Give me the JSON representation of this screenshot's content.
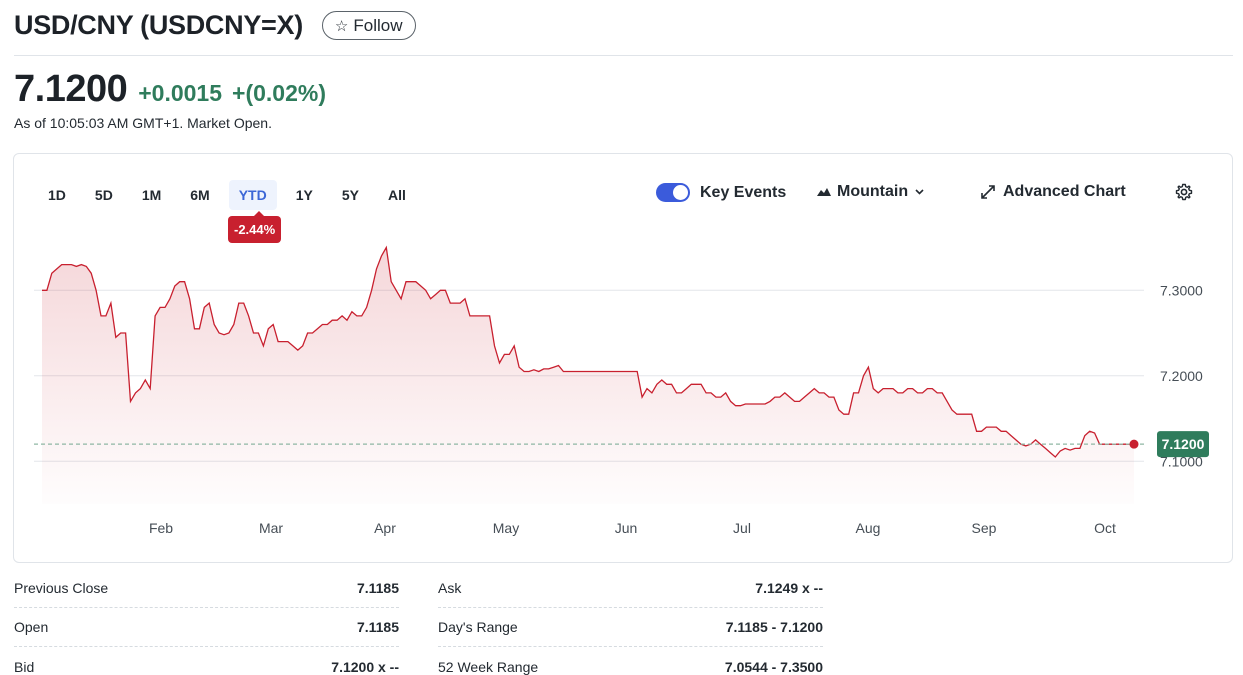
{
  "header": {
    "title": "USD/CNY (USDCNY=X)",
    "follow_label": "Follow"
  },
  "quote": {
    "price": "7.1200",
    "change": "+0.0015",
    "change_pct": "+(0.02%)",
    "as_of": "As of 10:05:03 AM GMT+1. Market Open."
  },
  "ranges": [
    "1D",
    "5D",
    "1M",
    "6M",
    "YTD",
    "1Y",
    "5Y",
    "All"
  ],
  "active_range": "YTD",
  "range_badge": "-2.44%",
  "toolbar": {
    "key_events_label": "Key Events",
    "key_events_on": true,
    "chart_type_label": "Mountain",
    "advanced_label": "Advanced Chart"
  },
  "colors": {
    "line": "#c8202f",
    "positive": "#2f7c5c",
    "accent": "#3b5bdb",
    "badge_price": "#2f7c5c",
    "badge_range": "#c8202f"
  },
  "chart_data": {
    "type": "area",
    "x_tick_labels": [
      "Feb",
      "Mar",
      "Apr",
      "May",
      "Jun",
      "Jul",
      "Aug",
      "Sep",
      "Oct"
    ],
    "y_tick_labels": [
      "7.3000",
      "7.2000",
      "7.1000"
    ],
    "ylim": [
      7.05,
      7.36
    ],
    "current_value": 7.12,
    "current_label": "7.1200",
    "previous_close": 7.1185,
    "grid": true,
    "series": [
      {
        "values": [
          7.3,
          7.3,
          7.32,
          7.325,
          7.33,
          7.33,
          7.33,
          7.328,
          7.33,
          7.328,
          7.32,
          7.3,
          7.27,
          7.27,
          7.285,
          7.245,
          7.25,
          7.25,
          7.17,
          7.18,
          7.185,
          7.195,
          7.185,
          7.27,
          7.28,
          7.28,
          7.29,
          7.305,
          7.31,
          7.31,
          7.29,
          7.255,
          7.255,
          7.28,
          7.285,
          7.26,
          7.25,
          7.248,
          7.25,
          7.26,
          7.285,
          7.285,
          7.27,
          7.25,
          7.25,
          7.235,
          7.255,
          7.26,
          7.24,
          7.24,
          7.24,
          7.235,
          7.23,
          7.235,
          7.25,
          7.25,
          7.255,
          7.26,
          7.26,
          7.265,
          7.265,
          7.27,
          7.265,
          7.275,
          7.27,
          7.27,
          7.28,
          7.3,
          7.325,
          7.34,
          7.35,
          7.31,
          7.3,
          7.29,
          7.31,
          7.31,
          7.31,
          7.305,
          7.3,
          7.29,
          7.295,
          7.3,
          7.3,
          7.285,
          7.285,
          7.285,
          7.29,
          7.27,
          7.27,
          7.27,
          7.27,
          7.27,
          7.235,
          7.215,
          7.225,
          7.225,
          7.235,
          7.21,
          7.205,
          7.205,
          7.207,
          7.205,
          7.208,
          7.208,
          7.21,
          7.212,
          7.205,
          7.205,
          7.205,
          7.205,
          7.205,
          7.205,
          7.205,
          7.205,
          7.205,
          7.205,
          7.205,
          7.205,
          7.205,
          7.205,
          7.205,
          7.205,
          7.175,
          7.185,
          7.18,
          7.19,
          7.195,
          7.19,
          7.19,
          7.18,
          7.18,
          7.185,
          7.19,
          7.19,
          7.19,
          7.18,
          7.18,
          7.175,
          7.175,
          7.18,
          7.17,
          7.165,
          7.165,
          7.167,
          7.167,
          7.167,
          7.167,
          7.167,
          7.17,
          7.175,
          7.175,
          7.18,
          7.175,
          7.17,
          7.17,
          7.175,
          7.18,
          7.185,
          7.18,
          7.18,
          7.175,
          7.175,
          7.16,
          7.155,
          7.155,
          7.18,
          7.18,
          7.2,
          7.21,
          7.185,
          7.18,
          7.185,
          7.185,
          7.185,
          7.18,
          7.18,
          7.185,
          7.185,
          7.18,
          7.18,
          7.185,
          7.185,
          7.18,
          7.18,
          7.17,
          7.16,
          7.155,
          7.155,
          7.155,
          7.155,
          7.135,
          7.135,
          7.14,
          7.14,
          7.14,
          7.135,
          7.135,
          7.13,
          7.125,
          7.12,
          7.118,
          7.12,
          7.125,
          7.12,
          7.115,
          7.11,
          7.105,
          7.112,
          7.115,
          7.113,
          7.115,
          7.115,
          7.13,
          7.135,
          7.133,
          7.12,
          7.12,
          7.12,
          7.12,
          7.12,
          7.12,
          7.12,
          7.12
        ]
      }
    ]
  },
  "stats": [
    {
      "label": "Previous Close",
      "value": "7.1185"
    },
    {
      "label": "Ask",
      "value": "7.1249 x --"
    },
    {
      "label": "Open",
      "value": "7.1185"
    },
    {
      "label": "Day's Range",
      "value": "7.1185 - 7.1200"
    },
    {
      "label": "Bid",
      "value": "7.1200 x --"
    },
    {
      "label": "52 Week Range",
      "value": "7.0544 - 7.3500"
    }
  ]
}
